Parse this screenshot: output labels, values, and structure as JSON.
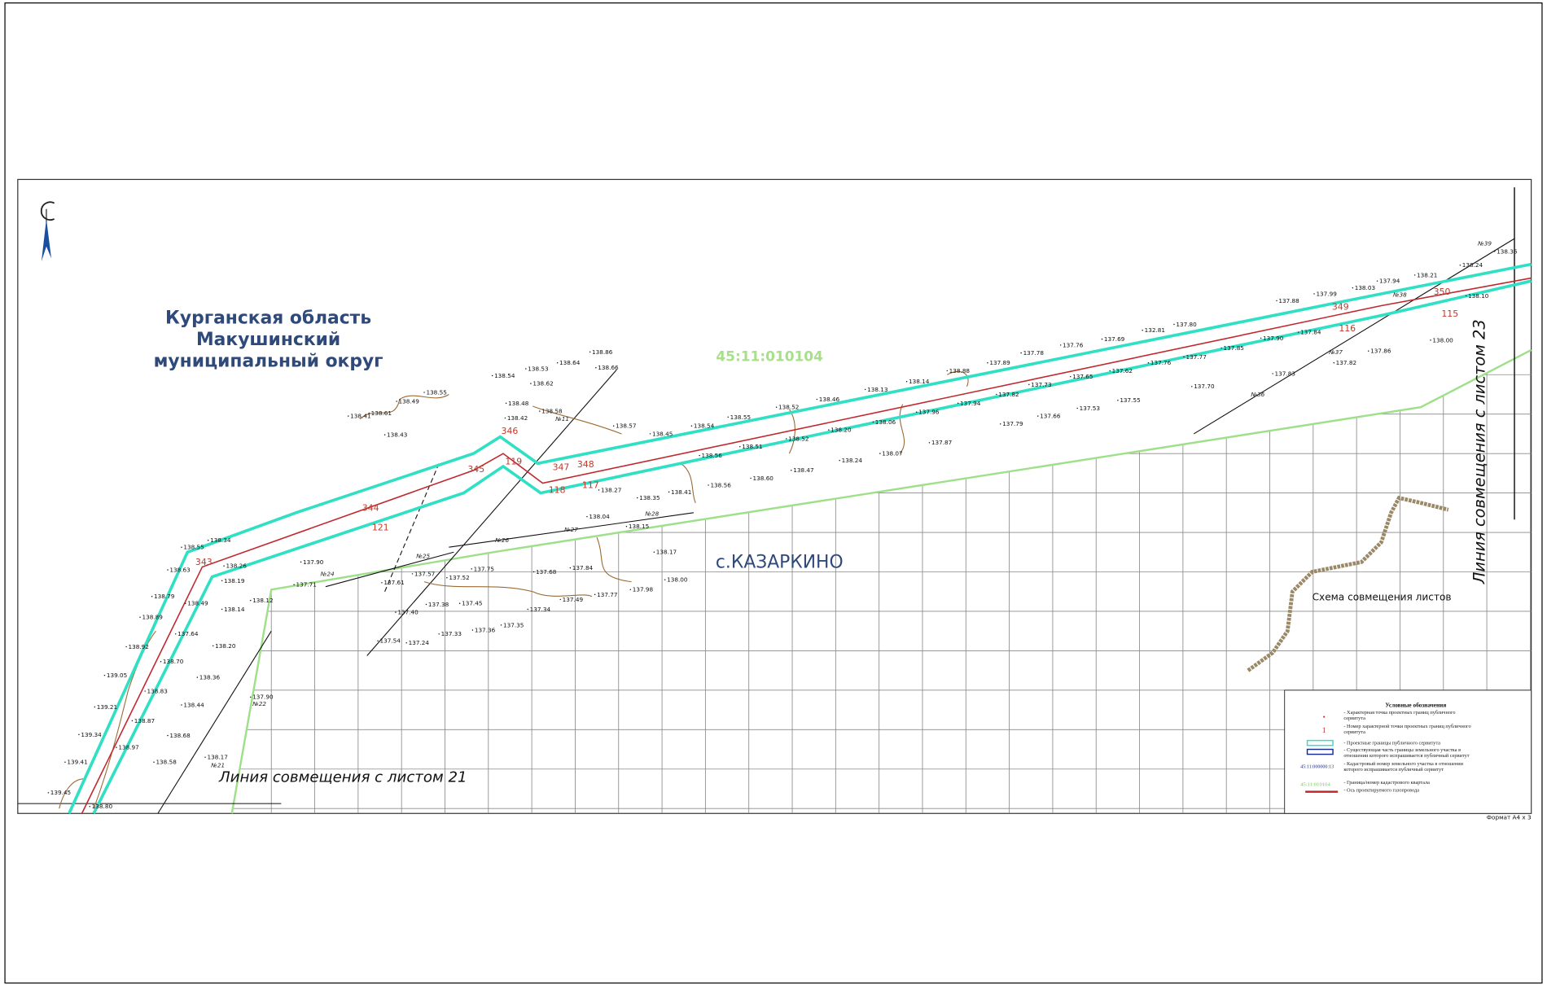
{
  "region_label": [
    "Курганская область",
    "Макушинский",
    "муниципальный округ"
  ],
  "cadastral_quarter": "45:11:010104",
  "settlement": "с.КАЗАРКИНО",
  "sheet_links": {
    "right": "Линия совмещения с листом 23",
    "bottom": "Линия совмещения с листом 21"
  },
  "sheet_scheme": "Схема совмещения листов",
  "format": "Формат А4 х 3",
  "legend": {
    "title": "Условные обозначения",
    "symbols": {
      "point_number": "1",
      "parcel_number": "45:11:000000:13",
      "quarter_number": "45:11:010104"
    },
    "items": [
      [
        "- Характерная точка проектных границ публичного",
        "сервитута"
      ],
      [
        "- Номер характерной точки проектных границ публичного",
        "сервитута"
      ],
      [
        "- Проектные границы публичного сервитута"
      ],
      [
        "- Существующая часть границы земельного участка в",
        "отношении которого испрашивается публичный сервитут"
      ],
      [
        "- Кадастровый номер земельного участка в отношении",
        "которого испрашивается публичный сервитут"
      ],
      [
        "- Граница/номер кадастрового квартала"
      ],
      [
        "- Ось проектируемого газопровода"
      ]
    ]
  },
  "point_numbers": [
    "346",
    "345",
    "119",
    "118",
    "117",
    "347",
    "348",
    "343",
    "344",
    "121",
    "349",
    "350",
    "116",
    "115"
  ],
  "objects": [
    "№11",
    "№26",
    "№25",
    "№24",
    "№27",
    "№28",
    "№22",
    "№21",
    "№36",
    "№37",
    "№38",
    "№39"
  ],
  "elevations": [
    "138.86",
    "138.66",
    "138.64",
    "138.53",
    "138.54",
    "138.62",
    "138.55",
    "138.49",
    "138.48",
    "138.41",
    "138.61",
    "138.42",
    "138.58",
    "138.43",
    "138.57",
    "138.45",
    "138.54",
    "138.55",
    "138.52",
    "138.46",
    "138.13",
    "138.14",
    "138.88",
    "137.89",
    "137.78",
    "137.76",
    "137.69",
    "132.81",
    "137.80",
    "137.88",
    "137.99",
    "138.03",
    "137.94",
    "138.21",
    "138.24",
    "138.35",
    "138.10",
    "138.00",
    "137.86",
    "137.82",
    "137.83",
    "137.70",
    "137.55",
    "137.53",
    "137.66",
    "137.79",
    "137.87",
    "138.07",
    "138.24",
    "138.47",
    "138.60",
    "138.56",
    "138.41",
    "138.35",
    "138.27",
    "138.04",
    "138.15",
    "138.17",
    "138.00",
    "137.98",
    "137.77",
    "137.49",
    "137.34",
    "137.35",
    "137.36",
    "137.33",
    "137.24",
    "137.54",
    "137.40",
    "137.38",
    "137.45",
    "137.68",
    "137.84",
    "137.75",
    "137.52",
    "137.57",
    "137.61",
    "137.90",
    "138.19",
    "138.26",
    "138.34",
    "138.55",
    "138.63",
    "138.79",
    "138.49",
    "138.14",
    "138.89",
    "137.64",
    "138.20",
    "138.92",
    "138.70",
    "138.36",
    "139.05",
    "138.83",
    "138.44",
    "139.21",
    "138.87",
    "138.68",
    "139.34",
    "138.97",
    "138.58",
    "139.41",
    "139.45",
    "138.80",
    "137.90",
    "138.17",
    "138.12",
    "137.71",
    "138.56",
    "138.51",
    "138.52",
    "138.20",
    "138.06",
    "137.96",
    "137.94",
    "137.82",
    "137.73",
    "137.65",
    "137.62",
    "137.76",
    "137.77",
    "137.85",
    "137.90",
    "137.84"
  ]
}
